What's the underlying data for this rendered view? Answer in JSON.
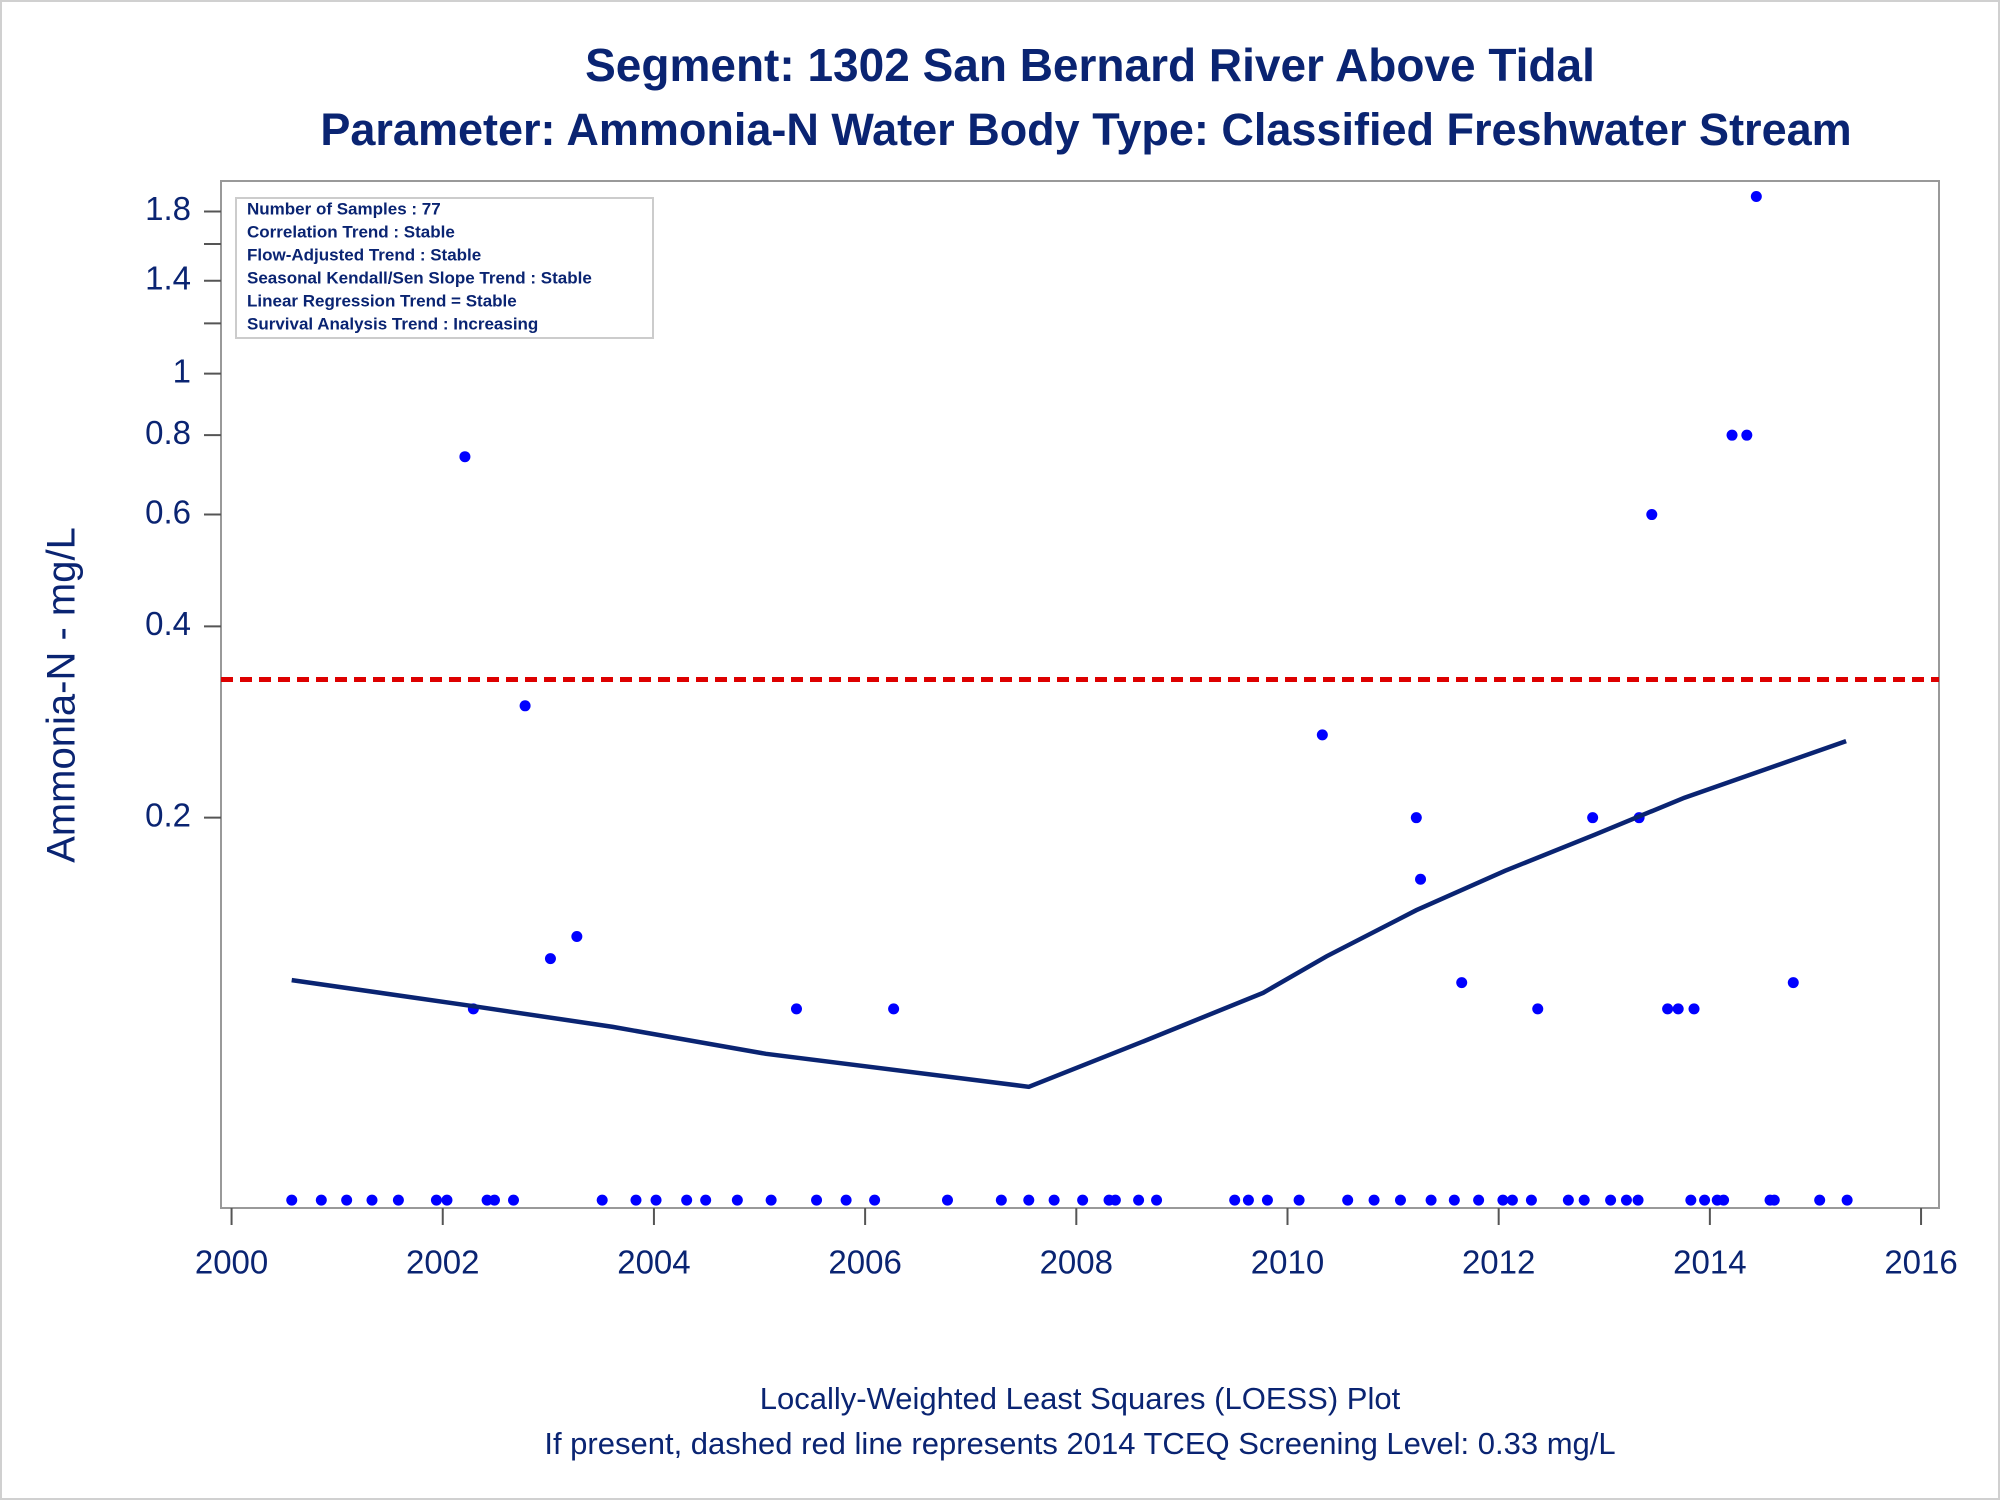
{
  "chart_data": {
    "type": "scatter",
    "title": "Segment: 1302  San Bernard River Above Tidal",
    "subtitle": "Parameter: Ammonia-N   Water Body Type: Classified Freshwater Stream",
    "y_label": "Ammonia-N - mg/L",
    "footnotes": [
      "Locally-Weighted Least Squares (LOESS) Plot",
      "If present, dashed red line represents 2014 TCEQ Screening Level: 0.33 mg/L"
    ],
    "stats_box": [
      "Number of Samples : 77",
      "Correlation Trend : Stable",
      "Flow-Adjusted Trend : Stable",
      "Seasonal Kendall/Sen Slope Trend : Stable",
      "Linear Regression Trend = Stable",
      "Survival Analysis Trend : Increasing"
    ],
    "log_y": true,
    "color": "#0000ff",
    "x": [
      2000.57,
      2000.85,
      2001.09,
      2001.33,
      2001.58,
      2001.94,
      2002.04,
      2002.21,
      2002.29,
      2002.42,
      2002.49,
      2002.67,
      2002.78,
      2003.02,
      2003.27,
      2003.51,
      2003.83,
      2004.02,
      2004.31,
      2004.49,
      2004.79,
      2005.11,
      2005.35,
      2005.54,
      2005.82,
      2006.09,
      2006.27,
      2006.78,
      2007.29,
      2007.55,
      2007.79,
      2008.06,
      2008.31,
      2008.37,
      2008.59,
      2008.76,
      2009.5,
      2009.63,
      2009.81,
      2010.11,
      2010.33,
      2010.57,
      2010.82,
      2011.07,
      2011.22,
      2011.26,
      2011.36,
      2011.58,
      2011.65,
      2011.81,
      2012.04,
      2012.13,
      2012.31,
      2012.37,
      2012.66,
      2012.81,
      2012.89,
      2013.06,
      2013.21,
      2013.32,
      2013.33,
      2013.45,
      2013.6,
      2013.7,
      2013.82,
      2013.85,
      2013.95,
      2014.07,
      2014.13,
      2014.21,
      2014.35,
      2014.44,
      2014.57,
      2014.61,
      2014.79,
      2015.04,
      2015.3
    ],
    "values": [
      0.05,
      0.05,
      0.05,
      0.05,
      0.05,
      0.05,
      0.05,
      0.74,
      0.1,
      0.05,
      0.05,
      0.05,
      0.3,
      0.12,
      0.13,
      0.05,
      0.05,
      0.05,
      0.05,
      0.05,
      0.05,
      0.05,
      0.1,
      0.05,
      0.05,
      0.05,
      0.1,
      0.05,
      0.05,
      0.05,
      0.05,
      0.05,
      0.05,
      0.05,
      0.05,
      0.05,
      0.05,
      0.05,
      0.05,
      0.05,
      0.27,
      0.05,
      0.05,
      0.05,
      0.2,
      0.16,
      0.05,
      0.05,
      0.11,
      0.05,
      0.05,
      0.05,
      0.05,
      0.1,
      0.05,
      0.05,
      0.2,
      0.05,
      0.05,
      0.05,
      0.2,
      0.6,
      0.1,
      0.1,
      0.05,
      0.1,
      0.05,
      0.05,
      0.05,
      0.8,
      0.8,
      1.9,
      0.05,
      0.05,
      0.11,
      0.05,
      0.05
    ],
    "loess": {
      "color": "#0a2472",
      "x": [
        2000.57,
        2002.29,
        2003.61,
        2005.06,
        2007.55,
        2008.68,
        2009.77,
        2010.37,
        2011.22,
        2012.06,
        2012.91,
        2013.76,
        2015.29
      ],
      "values": [
        0.111,
        0.101,
        0.0937,
        0.085,
        0.0754,
        0.0895,
        0.106,
        0.121,
        0.143,
        0.165,
        0.188,
        0.215,
        0.264
      ]
    },
    "reference_line": {
      "value": 0.33,
      "color": "#dd0000"
    },
    "xlim": [
      1999.9,
      2016.17
    ],
    "xticks": [
      2000,
      2002,
      2004,
      2006,
      2008,
      2010,
      2012,
      2014,
      2016
    ],
    "ylim": [
      0.0486,
      2.01
    ],
    "yticks": [
      0.2,
      0.4,
      0.6,
      0.8,
      1,
      1.4,
      1.8
    ],
    "yminorticks": [
      1.2,
      1.6
    ]
  }
}
